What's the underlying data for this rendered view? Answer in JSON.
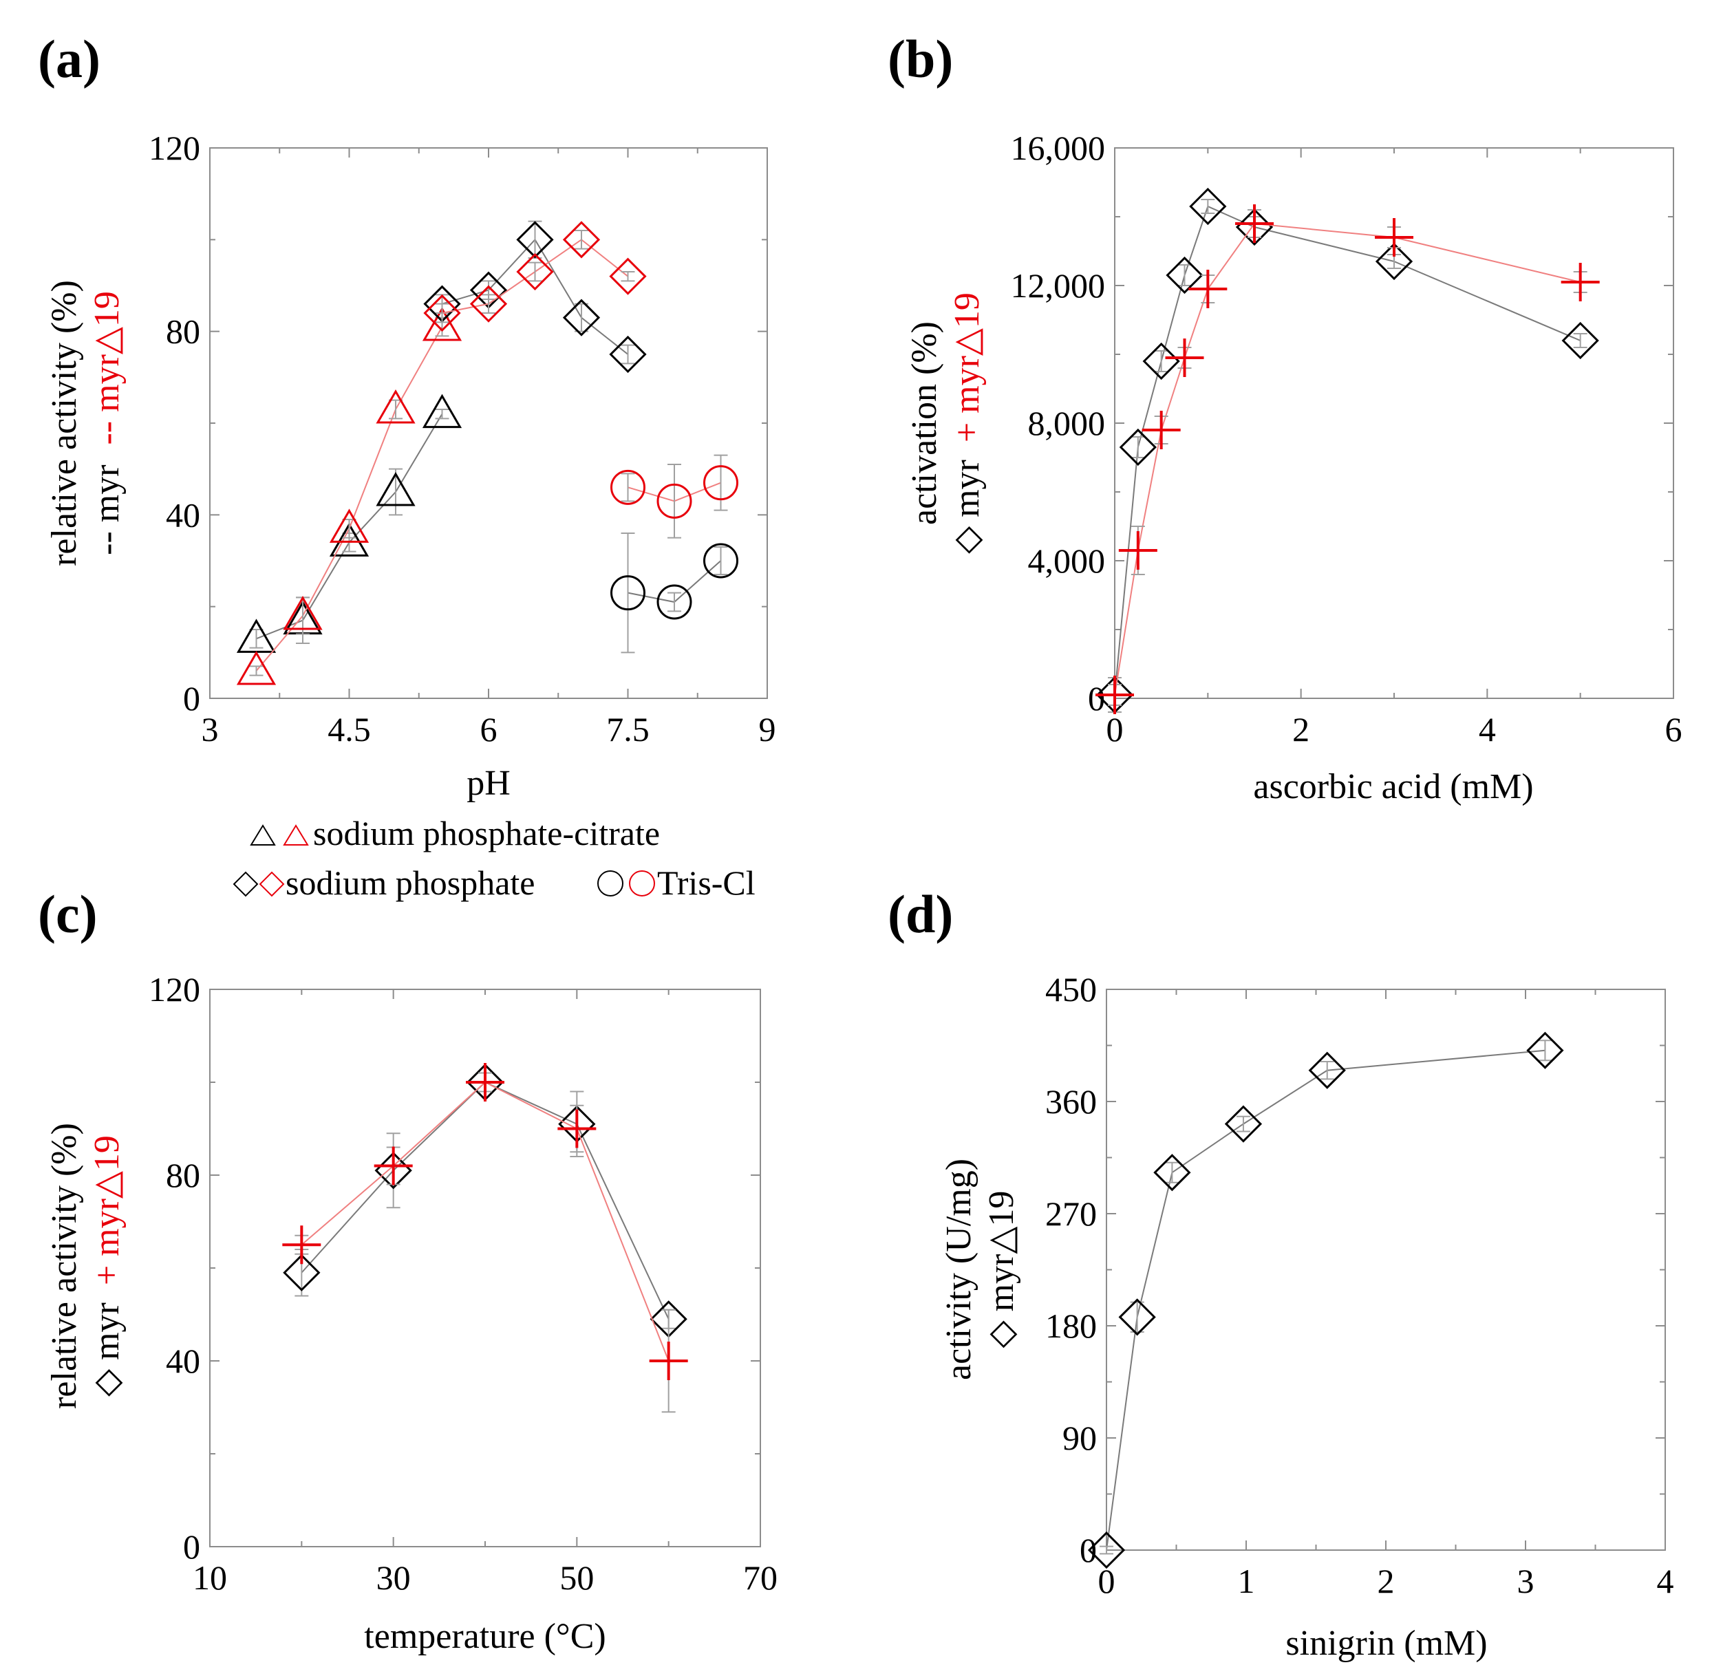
{
  "colors": {
    "myr": "#000000",
    "myr_d19": "#e8000b",
    "black_line": "#7a7a7a",
    "red_line": "#f08080",
    "errorbar": "#a0a0a0"
  },
  "legend_a": {
    "row1": "sodium phosphate-citrate",
    "row2a": "sodium phosphate",
    "row2b": "Tris-Cl"
  },
  "chart_data": [
    {
      "panel": "(a)",
      "type": "scatter",
      "xlabel": "pH",
      "ylabel_parts": [
        "relative activity (%)",
        "-- myr",
        "-- myr△19"
      ],
      "xlim": [
        3,
        9
      ],
      "ylim": [
        0,
        120
      ],
      "xticks": [
        "3",
        "4.5",
        "6",
        "7.5",
        "9"
      ],
      "yticks": [
        "0",
        "40",
        "80",
        "120"
      ],
      "series": [
        {
          "group": "myr",
          "buffer": "sodium phosphate-citrate",
          "marker": "triangle",
          "x": [
            3.5,
            4.0,
            4.5,
            5.0,
            5.5
          ],
          "y": [
            13,
            17,
            34,
            45,
            62
          ],
          "err": [
            2,
            5,
            2,
            5,
            1
          ]
        },
        {
          "group": "myr△19",
          "buffer": "sodium phosphate-citrate",
          "marker": "triangle",
          "x": [
            3.5,
            4.0,
            4.5,
            5.0,
            5.5
          ],
          "y": [
            6,
            18,
            37,
            63,
            81
          ],
          "err": [
            1,
            4,
            2,
            2,
            2
          ]
        },
        {
          "group": "myr",
          "buffer": "sodium phosphate",
          "marker": "diamond",
          "x": [
            5.5,
            6.0,
            6.5,
            7.0,
            7.5
          ],
          "y": [
            86,
            89,
            100,
            83,
            75
          ],
          "err": [
            2,
            2,
            4,
            3,
            2
          ]
        },
        {
          "group": "myr△19",
          "buffer": "sodium phosphate",
          "marker": "diamond",
          "x": [
            5.5,
            6.0,
            6.5,
            7.0,
            7.5
          ],
          "y": [
            84,
            86,
            93,
            100,
            92
          ],
          "err": [
            2,
            2,
            2,
            2,
            1
          ]
        },
        {
          "group": "myr",
          "buffer": "Tris-Cl",
          "marker": "circle",
          "x": [
            7.5,
            8.0,
            8.5
          ],
          "y": [
            23,
            21,
            30
          ],
          "err": [
            13,
            2,
            3
          ]
        },
        {
          "group": "myr△19",
          "buffer": "Tris-Cl",
          "marker": "circle",
          "x": [
            7.5,
            8.0,
            8.5
          ],
          "y": [
            46,
            43,
            47
          ],
          "err": [
            3,
            8,
            6
          ]
        }
      ]
    },
    {
      "panel": "(b)",
      "type": "line",
      "xlabel": "ascorbic acid (mM)",
      "ylabel_parts": [
        "activation (%)",
        "◇ myr",
        "+ myr△19"
      ],
      "xlim": [
        0,
        6
      ],
      "ylim": [
        0,
        16000
      ],
      "xticks": [
        "0",
        "2",
        "4",
        "6"
      ],
      "yticks": [
        "0",
        "4,000",
        "8,000",
        "12,000",
        "16,000"
      ],
      "series": [
        {
          "name": "myr",
          "marker": "diamond",
          "x": [
            0,
            0.25,
            0.5,
            0.75,
            1.0,
            1.5,
            3.0,
            5.0
          ],
          "y": [
            100,
            7300,
            9800,
            12300,
            14300,
            13700,
            12700,
            10400
          ],
          "err": [
            500,
            300,
            300,
            300,
            200,
            300,
            200,
            200
          ]
        },
        {
          "name": "myr△19",
          "marker": "plus",
          "x": [
            0,
            0.25,
            0.5,
            0.75,
            1.0,
            1.5,
            3.0,
            5.0
          ],
          "y": [
            100,
            4300,
            7800,
            9900,
            11900,
            13800,
            13400,
            12100
          ],
          "err": [
            300,
            700,
            400,
            300,
            400,
            400,
            300,
            300
          ]
        }
      ]
    },
    {
      "panel": "(c)",
      "type": "line",
      "xlabel": "temperature (°C)",
      "ylabel_parts": [
        "relative activity (%)",
        "◇ myr",
        "+ myr△19"
      ],
      "xlim": [
        10,
        70
      ],
      "ylim": [
        0,
        120
      ],
      "xticks": [
        "10",
        "30",
        "50",
        "70"
      ],
      "yticks": [
        "0",
        "40",
        "80",
        "120"
      ],
      "series": [
        {
          "name": "myr",
          "marker": "diamond",
          "x": [
            20,
            30,
            40,
            50,
            60
          ],
          "y": [
            59,
            81,
            100,
            91,
            49
          ],
          "err": [
            5,
            8,
            2,
            7,
            2
          ]
        },
        {
          "name": "myr△19",
          "marker": "plus",
          "x": [
            20,
            30,
            40,
            50,
            60
          ],
          "y": [
            65,
            82,
            100,
            90,
            40
          ],
          "err": [
            2,
            4,
            2,
            5,
            11
          ]
        }
      ]
    },
    {
      "panel": "(d)",
      "type": "line",
      "xlabel": "sinigrin (mM)",
      "ylabel_parts": [
        "activity (U/mg)",
        "◇ myr△19"
      ],
      "xlim": [
        0,
        4
      ],
      "ylim": [
        0,
        450
      ],
      "xticks": [
        "0",
        "1",
        "2",
        "3",
        "4"
      ],
      "yticks": [
        "0",
        "90",
        "180",
        "270",
        "360",
        "450"
      ],
      "series": [
        {
          "name": "myr△19",
          "marker": "diamond",
          "x": [
            0,
            0.22,
            0.47,
            0.98,
            1.58,
            3.14
          ],
          "y": [
            0,
            187,
            303,
            342,
            385,
            401
          ],
          "err": [
            3,
            12,
            8,
            6,
            7,
            8
          ]
        }
      ]
    }
  ]
}
